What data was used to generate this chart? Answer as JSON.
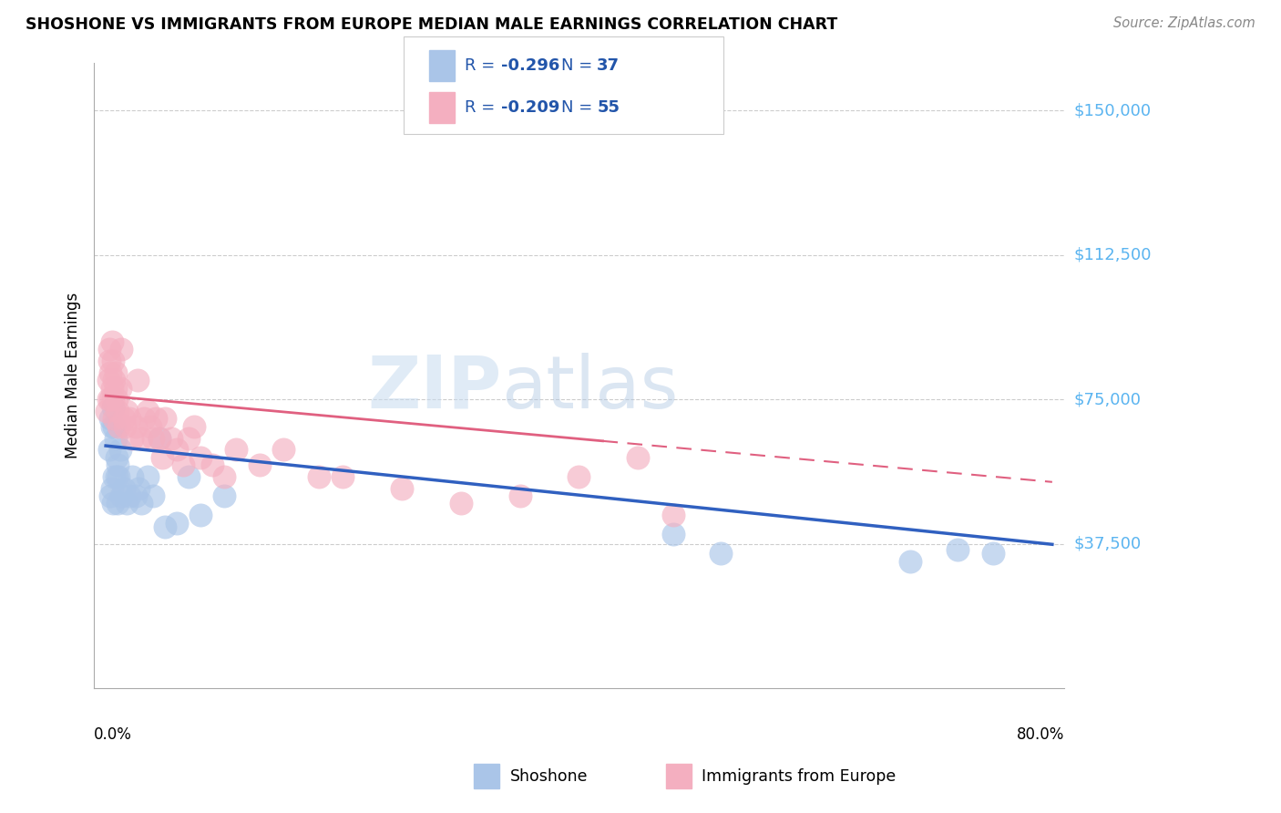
{
  "title": "SHOSHONE VS IMMIGRANTS FROM EUROPE MEDIAN MALE EARNINGS CORRELATION CHART",
  "source": "Source: ZipAtlas.com",
  "ylabel": "Median Male Earnings",
  "y_ticks": [
    37500,
    75000,
    112500,
    150000
  ],
  "y_tick_labels": [
    "$37,500",
    "$75,000",
    "$112,500",
    "$150,000"
  ],
  "y_min": 0,
  "y_max": 162500,
  "x_min": 0.0,
  "x_max": 0.8,
  "watermark_zip": "ZIP",
  "watermark_atlas": "atlas",
  "legend_text": [
    "R = ",
    "-0.296",
    "   N = ",
    "37",
    "R = ",
    "-0.209",
    "   N = ",
    "55"
  ],
  "blue_scatter_color": "#aac5e8",
  "pink_scatter_color": "#f4afc0",
  "blue_line_color": "#3060c0",
  "pink_line_color": "#e06080",
  "tick_label_color": "#5ab4f0",
  "shoshone_x": [
    0.003,
    0.004,
    0.004,
    0.005,
    0.005,
    0.006,
    0.006,
    0.007,
    0.007,
    0.008,
    0.009,
    0.009,
    0.01,
    0.01,
    0.011,
    0.012,
    0.013,
    0.015,
    0.018,
    0.02,
    0.022,
    0.025,
    0.028,
    0.03,
    0.035,
    0.04,
    0.045,
    0.05,
    0.06,
    0.07,
    0.08,
    0.1,
    0.48,
    0.52,
    0.68,
    0.72,
    0.75
  ],
  "shoshone_y": [
    62000,
    70000,
    50000,
    68000,
    52000,
    73000,
    48000,
    68000,
    55000,
    65000,
    60000,
    55000,
    58000,
    48000,
    55000,
    62000,
    50000,
    52000,
    48000,
    50000,
    55000,
    50000,
    52000,
    48000,
    55000,
    50000,
    65000,
    42000,
    43000,
    55000,
    45000,
    50000,
    40000,
    35000,
    33000,
    36000,
    35000
  ],
  "europe_x": [
    0.001,
    0.002,
    0.002,
    0.003,
    0.003,
    0.004,
    0.004,
    0.005,
    0.005,
    0.006,
    0.006,
    0.007,
    0.007,
    0.008,
    0.008,
    0.009,
    0.01,
    0.011,
    0.012,
    0.013,
    0.015,
    0.016,
    0.018,
    0.02,
    0.022,
    0.025,
    0.027,
    0.03,
    0.032,
    0.035,
    0.038,
    0.04,
    0.042,
    0.045,
    0.048,
    0.05,
    0.055,
    0.06,
    0.065,
    0.07,
    0.075,
    0.08,
    0.09,
    0.1,
    0.11,
    0.13,
    0.15,
    0.18,
    0.2,
    0.25,
    0.3,
    0.35,
    0.4,
    0.45,
    0.48
  ],
  "europe_y": [
    72000,
    75000,
    80000,
    85000,
    88000,
    82000,
    75000,
    90000,
    78000,
    85000,
    75000,
    80000,
    70000,
    82000,
    78000,
    75000,
    72000,
    68000,
    78000,
    88000,
    70000,
    68000,
    72000,
    70000,
    65000,
    68000,
    80000,
    65000,
    70000,
    72000,
    68000,
    65000,
    70000,
    65000,
    60000,
    70000,
    65000,
    62000,
    58000,
    65000,
    68000,
    60000,
    58000,
    55000,
    62000,
    58000,
    62000,
    55000,
    55000,
    52000,
    48000,
    50000,
    55000,
    60000,
    45000
  ]
}
